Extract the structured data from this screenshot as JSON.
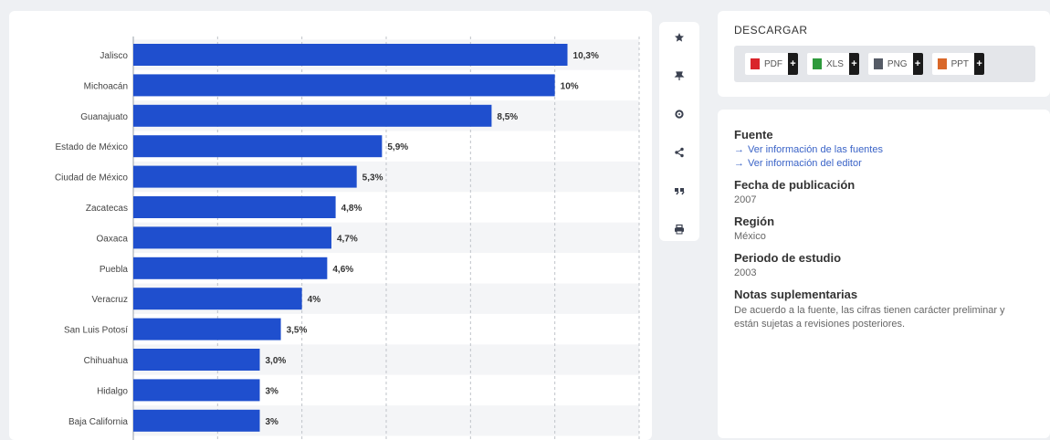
{
  "chart_data": {
    "type": "bar",
    "orientation": "horizontal",
    "categories": [
      "Jalisco",
      "Michoacán",
      "Guanajuato",
      "Estado de México",
      "Ciudad de México",
      "Zacatecas",
      "Oaxaca",
      "Puebla",
      "Veracruz",
      "San Luis Potosí",
      "Chihuahua",
      "Hidalgo",
      "Baja California"
    ],
    "values": [
      10.3,
      10,
      8.5,
      5.9,
      5.3,
      4.8,
      4.7,
      4.6,
      4,
      3.5,
      3.0,
      3,
      3
    ],
    "labels": [
      "10,3%",
      "10%",
      "8,5%",
      "5,9%",
      "5,3%",
      "4,8%",
      "4,7%",
      "4,6%",
      "4%",
      "3,5%",
      "3,0%",
      "3%",
      "3%"
    ],
    "xlim": [
      0,
      12
    ],
    "grid": true,
    "colors": {
      "bar": "#1f4fce",
      "grid": "#bfc3c9",
      "band": "#f4f5f7"
    }
  },
  "toolbar": {
    "icons": [
      "star-icon",
      "pin-icon",
      "settings-icon",
      "share-icon",
      "quote-icon",
      "print-icon"
    ]
  },
  "download": {
    "title": "DESCARGAR",
    "buttons": [
      {
        "label": "PDF",
        "icon": "pdf-file-icon",
        "color": "#d9252b"
      },
      {
        "label": "XLS",
        "icon": "xls-file-icon",
        "color": "#2e9a3c"
      },
      {
        "label": "PNG",
        "icon": "png-file-icon",
        "color": "#555b66"
      },
      {
        "label": "PPT",
        "icon": "ppt-file-icon",
        "color": "#d9682a"
      }
    ]
  },
  "info": {
    "source_heading": "Fuente",
    "source_link": "Ver información de las fuentes",
    "editor_link": "Ver información del editor",
    "date_heading": "Fecha de publicación",
    "date_value": "2007",
    "region_heading": "Región",
    "region_value": "México",
    "period_heading": "Periodo de estudio",
    "period_value": "2003",
    "notes_heading": "Notas suplementarias",
    "notes_value": "De acuerdo a la fuente, las cifras tienen carácter preliminar y están sujetas a revisiones posteriores."
  }
}
